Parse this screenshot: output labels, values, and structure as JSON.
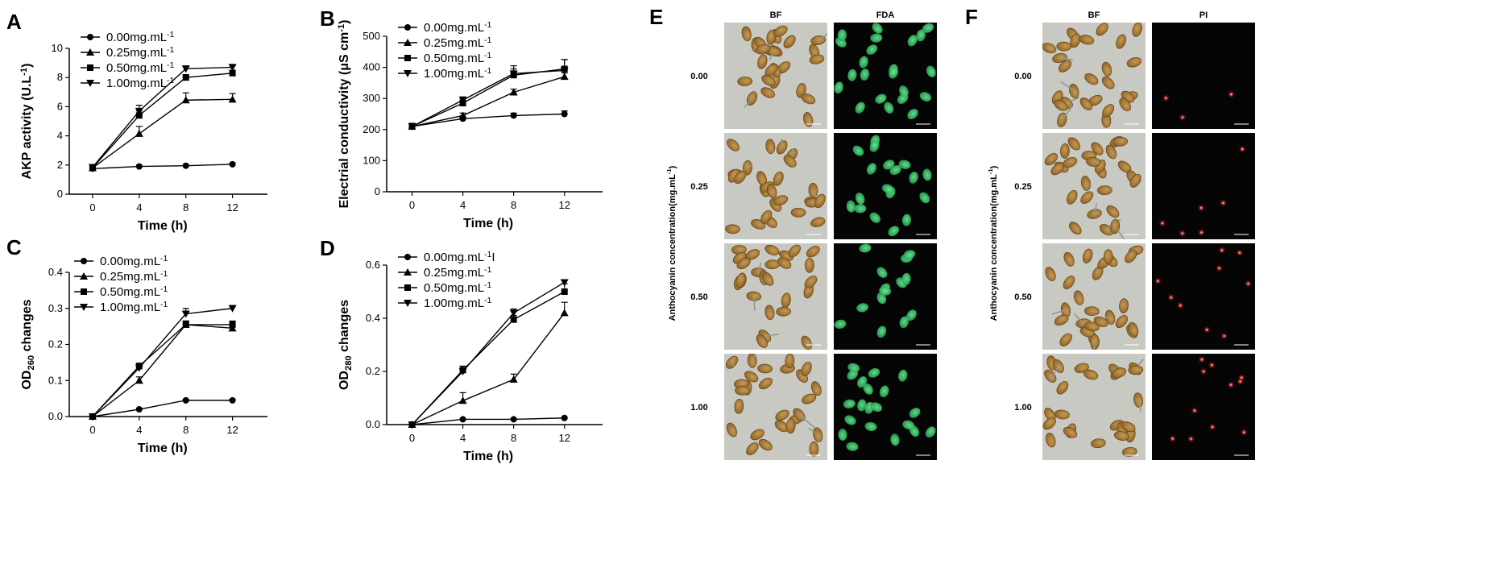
{
  "chart_data": [
    {
      "panel": "A",
      "type": "line",
      "x": [
        0,
        4,
        8,
        12
      ],
      "xlabel": "Time (h)",
      "ylabel": "AKP activity (U.L-1)",
      "ylim": [
        0,
        10
      ],
      "yticks": [
        0,
        2,
        4,
        6,
        8,
        10
      ],
      "series": [
        {
          "name": "0.00mg.mL-1",
          "marker": "circle",
          "values": [
            1.75,
            1.9,
            1.95,
            2.05
          ],
          "err": [
            0.1,
            0.1,
            0.1,
            0.1
          ]
        },
        {
          "name": "0.25mg.mL-1",
          "marker": "triangle-up",
          "values": [
            1.8,
            4.15,
            6.45,
            6.5
          ],
          "err": [
            0.1,
            0.5,
            0.5,
            0.4
          ]
        },
        {
          "name": "0.50mg.mL-1",
          "marker": "square",
          "values": [
            1.8,
            5.4,
            8.0,
            8.3
          ],
          "err": [
            0.1,
            0.3,
            0.2,
            0.2
          ]
        },
        {
          "name": "1.00mg.mL-1",
          "marker": "triangle-down",
          "values": [
            1.85,
            5.7,
            8.6,
            8.7
          ],
          "err": [
            0.1,
            0.4,
            0.2,
            0.2
          ]
        }
      ],
      "legend": "top-left"
    },
    {
      "panel": "B",
      "type": "line",
      "x": [
        0,
        4,
        8,
        12
      ],
      "xlabel": "Time (h)",
      "ylabel": "Electrial conductivity (μS cm-1)",
      "ylim": [
        0,
        500
      ],
      "yticks": [
        0,
        100,
        200,
        300,
        400,
        500
      ],
      "series": [
        {
          "name": "0.00mg.mL-1",
          "marker": "circle",
          "values": [
            210,
            235,
            245,
            250
          ],
          "err": [
            10,
            8,
            8,
            10
          ]
        },
        {
          "name": "0.25mg.mL-1",
          "marker": "triangle-up",
          "values": [
            210,
            245,
            320,
            370
          ],
          "err": [
            10,
            8,
            10,
            12
          ]
        },
        {
          "name": "0.50mg.mL-1",
          "marker": "square",
          "values": [
            210,
            285,
            375,
            395
          ],
          "err": [
            10,
            10,
            20,
            30
          ]
        },
        {
          "name": "1.00mg.mL-1",
          "marker": "triangle-down",
          "values": [
            210,
            295,
            380,
            390
          ],
          "err": [
            10,
            10,
            25,
            35
          ]
        }
      ],
      "legend": "top-left"
    },
    {
      "panel": "C",
      "type": "line",
      "x": [
        0,
        4,
        8,
        12
      ],
      "xlabel": "Time (h)",
      "ylabel": "OD260 changes",
      "ylim": [
        0,
        0.4
      ],
      "yticks": [
        0.0,
        0.1,
        0.2,
        0.3,
        0.4
      ],
      "series": [
        {
          "name": "0.00mg.mL-1",
          "marker": "circle",
          "values": [
            0.0,
            0.02,
            0.045,
            0.045
          ],
          "err": [
            0.002,
            0.003,
            0.003,
            0.003
          ]
        },
        {
          "name": "0.25mg.mL-1",
          "marker": "triangle-up",
          "values": [
            0.0,
            0.1,
            0.255,
            0.245
          ],
          "err": [
            0.002,
            0.01,
            0.01,
            0.01
          ]
        },
        {
          "name": "0.50mg.mL-1",
          "marker": "square",
          "values": [
            0.0,
            0.14,
            0.255,
            0.255
          ],
          "err": [
            0.002,
            0.008,
            0.01,
            0.01
          ]
        },
        {
          "name": "1.00mg.mL-1",
          "marker": "triangle-down",
          "values": [
            0.0,
            0.135,
            0.285,
            0.3
          ],
          "err": [
            0.002,
            0.008,
            0.015,
            0.008
          ]
        }
      ],
      "legend": "top-left"
    },
    {
      "panel": "D",
      "type": "line",
      "x": [
        0,
        4,
        8,
        12
      ],
      "xlabel": "Time (h)",
      "ylabel": "OD280 changes",
      "ylim": [
        0,
        0.6
      ],
      "yticks": [
        0.0,
        0.2,
        0.4,
        0.6
      ],
      "series": [
        {
          "name": "0.00mg.mL-1I",
          "marker": "circle",
          "values": [
            0.0,
            0.02,
            0.02,
            0.025
          ],
          "err": [
            0.002,
            0.003,
            0.003,
            0.003
          ]
        },
        {
          "name": "0.25mg.mL-1",
          "marker": "triangle-up",
          "values": [
            0.0,
            0.09,
            0.17,
            0.42
          ],
          "err": [
            0.002,
            0.03,
            0.02,
            0.04
          ]
        },
        {
          "name": "0.50mg.mL-1",
          "marker": "square",
          "values": [
            0.0,
            0.205,
            0.395,
            0.5
          ],
          "err": [
            0.002,
            0.015,
            0.015,
            0.03
          ]
        },
        {
          "name": "1.00mg.mL-1",
          "marker": "triangle-down",
          "values": [
            0.0,
            0.2,
            0.42,
            0.535
          ],
          "err": [
            0.002,
            0.015,
            0.015,
            0.01
          ]
        }
      ],
      "legend": "top-left"
    }
  ],
  "micrographs": [
    {
      "panel": "E",
      "columns": [
        "BF",
        "FDA"
      ],
      "side_title": "Anthocyanin concentration(mg.mL-1)",
      "rows": [
        "0.00",
        "0.25",
        "0.50",
        "1.00"
      ],
      "fluor_color": "#2fd06a",
      "spore_counts": [
        22,
        18,
        14,
        20
      ]
    },
    {
      "panel": "F",
      "columns": [
        "BF",
        "PI"
      ],
      "side_title": "Anthocyanin concentration(mg.mL-1)",
      "rows": [
        "0.00",
        "0.25",
        "0.50",
        "1.00"
      ],
      "fluor_color": "#ff3b3b",
      "spore_counts": [
        3,
        6,
        9,
        11
      ]
    }
  ],
  "colors": {
    "bf_background": "#c9c9c4",
    "spore_fill": "#b0843f",
    "spore_edge": "#6a4a1c",
    "dark_field": "#050505"
  }
}
